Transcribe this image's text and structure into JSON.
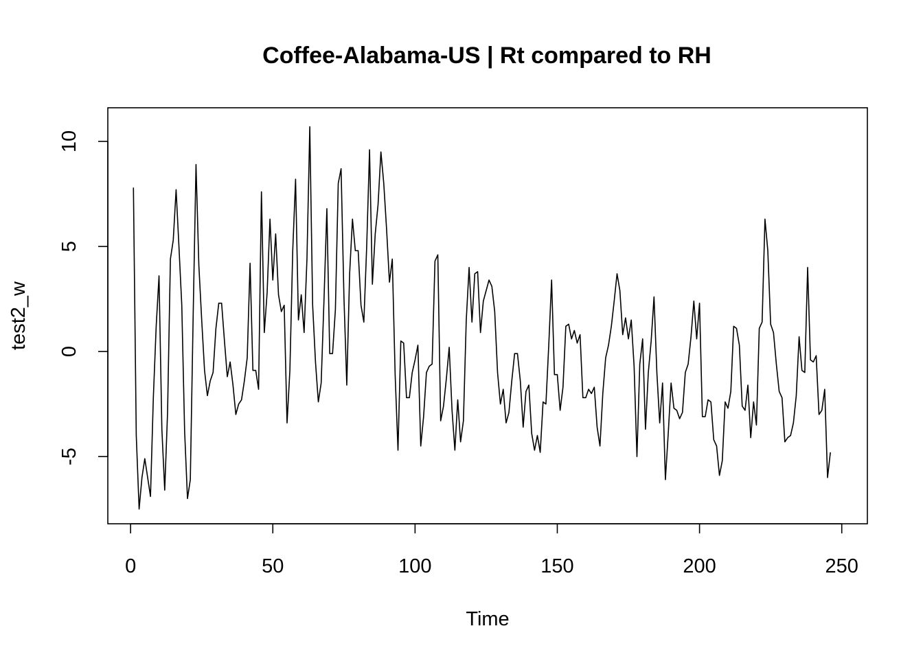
{
  "chart_data": {
    "type": "line",
    "title": "Coffee-Alabama-US | Rt compared to RH",
    "xlabel": "Time",
    "ylabel": "test2_w",
    "xlim": [
      -8,
      259
    ],
    "ylim": [
      -8.2,
      11.6
    ],
    "x_ticks": [
      0,
      50,
      100,
      150,
      200,
      250
    ],
    "y_ticks": [
      -5,
      0,
      5,
      10
    ],
    "x_tick_labels": [
      "0",
      "50",
      "100",
      "150",
      "200",
      "250"
    ],
    "y_tick_labels": [
      "-5",
      "0",
      "5",
      "10"
    ],
    "grid": false,
    "x_start": 1,
    "values": [
      7.8,
      -4.0,
      -7.5,
      -6.0,
      -5.1,
      -6.0,
      -6.9,
      -2.2,
      1.2,
      3.6,
      -3.7,
      -6.6,
      -2.9,
      4.4,
      5.3,
      7.7,
      5.0,
      2.2,
      -3.8,
      -7.0,
      -6.1,
      1.7,
      8.9,
      4.1,
      1.5,
      -0.9,
      -2.1,
      -1.4,
      -1.0,
      1.1,
      2.3,
      2.3,
      0.5,
      -1.2,
      -0.5,
      -1.6,
      -3.0,
      -2.5,
      -2.3,
      -1.4,
      -0.3,
      4.2,
      -0.9,
      -0.9,
      -1.8,
      7.6,
      0.9,
      2.8,
      6.3,
      3.4,
      5.6,
      2.7,
      1.9,
      2.2,
      -3.4,
      -0.9,
      4.8,
      8.2,
      1.5,
      2.7,
      0.9,
      4.4,
      10.7,
      2.2,
      -0.5,
      -2.4,
      -1.5,
      2.5,
      6.8,
      -0.1,
      -0.1,
      2.0,
      8.0,
      8.7,
      2.6,
      -1.6,
      3.7,
      6.3,
      4.8,
      4.8,
      2.2,
      1.4,
      5.0,
      9.6,
      3.2,
      5.6,
      7.0,
      9.5,
      8.0,
      5.8,
      3.3,
      4.4,
      -1.1,
      -4.7,
      0.5,
      0.4,
      -2.2,
      -2.2,
      -1.0,
      -0.4,
      0.3,
      -4.5,
      -3.1,
      -1.0,
      -0.7,
      -0.6,
      4.3,
      4.6,
      -3.3,
      -2.6,
      -1.3,
      0.2,
      -2.8,
      -4.7,
      -2.3,
      -4.3,
      -3.3,
      1.5,
      4.0,
      1.4,
      3.7,
      3.8,
      0.9,
      2.4,
      2.9,
      3.4,
      3.1,
      1.9,
      -1.0,
      -2.5,
      -1.8,
      -3.4,
      -2.9,
      -1.4,
      -0.1,
      -0.1,
      -1.4,
      -3.6,
      -1.9,
      -1.6,
      -3.9,
      -4.7,
      -4.0,
      -4.8,
      -2.4,
      -2.5,
      0.3,
      3.4,
      -1.1,
      -1.1,
      -2.8,
      -1.7,
      1.2,
      1.3,
      0.6,
      1.0,
      0.4,
      0.8,
      -2.2,
      -2.2,
      -1.8,
      -2.0,
      -1.7,
      -3.6,
      -4.5,
      -2.0,
      -0.3,
      0.3,
      1.2,
      2.4,
      3.7,
      2.9,
      0.8,
      1.6,
      0.6,
      1.5,
      -0.7,
      -5.0,
      -0.6,
      0.6,
      -3.7,
      -1.0,
      0.5,
      2.6,
      -1.0,
      -3.4,
      -1.5,
      -6.1,
      -3.9,
      -1.5,
      -2.7,
      -2.8,
      -3.2,
      -2.9,
      -1.0,
      -0.6,
      0.7,
      2.4,
      0.6,
      2.3,
      -3.1,
      -3.1,
      -2.3,
      -2.4,
      -4.2,
      -4.5,
      -5.9,
      -5.2,
      -2.4,
      -2.7,
      -1.9,
      1.2,
      1.1,
      0.3,
      -2.6,
      -2.8,
      -1.6,
      -4.1,
      -2.4,
      -3.5,
      1.1,
      1.4,
      6.3,
      4.8,
      1.3,
      0.9,
      -0.6,
      -1.9,
      -2.2,
      -4.3,
      -4.1,
      -4.0,
      -3.4,
      -2.1,
      0.7,
      -0.9,
      -1.0,
      4.0,
      -0.4,
      -0.5,
      -0.2,
      -3.0,
      -2.8,
      -1.8,
      -6.0,
      -4.8
    ]
  }
}
